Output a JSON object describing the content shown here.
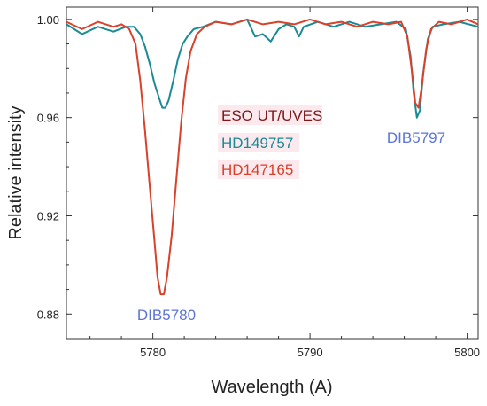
{
  "chart_data": {
    "type": "line",
    "title": "",
    "xlabel": "Wavelength (A)",
    "ylabel": "Relative intensity",
    "xlim": [
      5774.5,
      5800.7
    ],
    "ylim": [
      0.87,
      1.005
    ],
    "x_ticks": [
      5780,
      5790,
      5800
    ],
    "x_tick_labels": [
      "5780",
      "5790",
      "5800"
    ],
    "y_ticks": [
      0.88,
      0.92,
      0.96,
      1.0
    ],
    "y_tick_labels": [
      "0.88",
      "0.92",
      "0.96",
      "1.00"
    ],
    "grid": false,
    "legend": {
      "placement": "center",
      "entries": [
        {
          "text": "ESO UT/UVES",
          "color": "#7a1818"
        },
        {
          "text": "HD149757",
          "color": "#1a8a95"
        },
        {
          "text": "HD147165",
          "color": "#d9412b"
        }
      ]
    },
    "annotations": [
      {
        "text": "DIB5780",
        "x": 5780.5,
        "y": 0.88,
        "color": "#5b74d6"
      },
      {
        "text": "DIB5797",
        "x": 5796.8,
        "y": 0.956,
        "color": "#5b74d6"
      }
    ],
    "series": [
      {
        "name": "HD149757",
        "color": "#1a8a95",
        "points": [
          [
            5774.5,
            0.998
          ],
          [
            5775.5,
            0.994
          ],
          [
            5776.5,
            0.997
          ],
          [
            5777.5,
            0.995
          ],
          [
            5778.3,
            0.997
          ],
          [
            5778.8,
            0.997
          ],
          [
            5779.2,
            0.994
          ],
          [
            5779.5,
            0.989
          ],
          [
            5779.8,
            0.982
          ],
          [
            5780.1,
            0.974
          ],
          [
            5780.4,
            0.968
          ],
          [
            5780.6,
            0.964
          ],
          [
            5780.8,
            0.964
          ],
          [
            5781.0,
            0.967
          ],
          [
            5781.3,
            0.975
          ],
          [
            5781.6,
            0.984
          ],
          [
            5781.9,
            0.99
          ],
          [
            5782.2,
            0.993
          ],
          [
            5782.6,
            0.996
          ],
          [
            5783.2,
            0.997
          ],
          [
            5784.0,
            0.999
          ],
          [
            5785.0,
            0.998
          ],
          [
            5786.0,
            1.0
          ],
          [
            5786.5,
            0.993
          ],
          [
            5787.0,
            0.994
          ],
          [
            5787.5,
            0.991
          ],
          [
            5788.0,
            0.996
          ],
          [
            5788.5,
            0.998
          ],
          [
            5789.0,
            0.997
          ],
          [
            5789.3,
            0.993
          ],
          [
            5789.6,
            0.997
          ],
          [
            5790.5,
            0.999
          ],
          [
            5791.5,
            0.997
          ],
          [
            5792.5,
            0.999
          ],
          [
            5793.5,
            0.997
          ],
          [
            5794.5,
            0.998
          ],
          [
            5795.5,
            0.999
          ],
          [
            5796.1,
            0.996
          ],
          [
            5796.4,
            0.985
          ],
          [
            5796.6,
            0.97
          ],
          [
            5796.8,
            0.96
          ],
          [
            5797.0,
            0.963
          ],
          [
            5797.2,
            0.978
          ],
          [
            5797.5,
            0.992
          ],
          [
            5797.8,
            0.997
          ],
          [
            5798.5,
            0.998
          ],
          [
            5799.5,
            0.999
          ],
          [
            5800.7,
            0.997
          ]
        ]
      },
      {
        "name": "HD147165",
        "color": "#d9412b",
        "points": [
          [
            5774.5,
            0.999
          ],
          [
            5775.5,
            0.996
          ],
          [
            5776.5,
            0.999
          ],
          [
            5777.5,
            0.997
          ],
          [
            5778.0,
            0.998
          ],
          [
            5778.5,
            0.996
          ],
          [
            5778.9,
            0.99
          ],
          [
            5779.2,
            0.975
          ],
          [
            5779.5,
            0.955
          ],
          [
            5779.8,
            0.932
          ],
          [
            5780.1,
            0.91
          ],
          [
            5780.3,
            0.895
          ],
          [
            5780.5,
            0.888
          ],
          [
            5780.7,
            0.888
          ],
          [
            5780.9,
            0.895
          ],
          [
            5781.2,
            0.912
          ],
          [
            5781.5,
            0.935
          ],
          [
            5781.8,
            0.958
          ],
          [
            5782.1,
            0.976
          ],
          [
            5782.4,
            0.987
          ],
          [
            5782.8,
            0.994
          ],
          [
            5783.3,
            0.997
          ],
          [
            5784.0,
            0.999
          ],
          [
            5785.0,
            0.998
          ],
          [
            5786.0,
            1.0
          ],
          [
            5787.0,
            0.998
          ],
          [
            5788.0,
            0.999
          ],
          [
            5789.0,
            0.998
          ],
          [
            5790.0,
            1.0
          ],
          [
            5791.0,
            0.998
          ],
          [
            5792.0,
            0.999
          ],
          [
            5793.0,
            0.997
          ],
          [
            5794.0,
            0.999
          ],
          [
            5795.0,
            0.998
          ],
          [
            5795.8,
            0.999
          ],
          [
            5796.2,
            0.993
          ],
          [
            5796.5,
            0.978
          ],
          [
            5796.7,
            0.966
          ],
          [
            5796.9,
            0.964
          ],
          [
            5797.1,
            0.972
          ],
          [
            5797.4,
            0.988
          ],
          [
            5797.7,
            0.996
          ],
          [
            5798.2,
            0.999
          ],
          [
            5799.0,
            0.998
          ],
          [
            5800.0,
            1.0
          ],
          [
            5800.7,
            0.998
          ]
        ]
      }
    ]
  }
}
